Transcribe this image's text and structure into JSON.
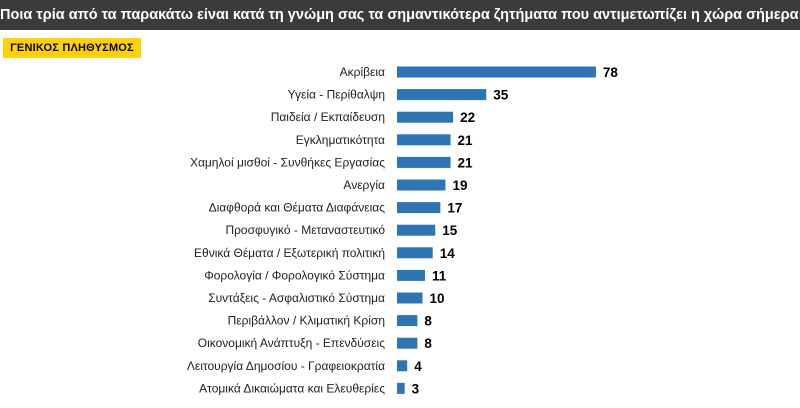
{
  "header": {
    "title": "Ποια τρία από τα παρακάτω είναι κατά τη γνώμη σας τα σημαντικότερα ζητήματα που αντιμετωπίζει η χώρα σήμερα;"
  },
  "badge": {
    "label": "ΓΕΝΙΚΟΣ ΠΛΗΘΥΣΜΟΣ"
  },
  "colors": {
    "bar": "#2e75b6",
    "header_bg": "#3b3b3b",
    "badge_bg": "#ffd200"
  },
  "chart_data": {
    "type": "bar",
    "orientation": "horizontal",
    "title": "Ποια τρία από τα παρακάτω είναι κατά τη γνώμη σας τα σημαντικότερα ζητήματα που αντιμετωπίζει η χώρα σήμερα;",
    "categories": [
      "Ακρίβεια",
      "Υγεία - Περίθαλψη",
      "Παιδεία / Εκπαίδευση",
      "Εγκληματικότητα",
      "Χαμηλοί μισθοί - Συνθήκες Εργασίας",
      "Ανεργία",
      "Διαφθορά και Θέματα Διαφάνειας",
      "Προσφυγικό - Μεταναστευτικό",
      "Εθνικά Θέματα / Εξωτερική πολιτική",
      "Φορολογία / Φορολογικό Σύστημα",
      "Συντάξεις - Ασφαλιστικό Σύστημα",
      "Περιβάλλον / Κλιματική Κρίση",
      "Οικονομική Ανάπτυξη - Επενδύσεις",
      "Λειτουργία Δημοσίου - Γραφειοκρατία",
      "Ατομικά Δικαιώματα και Ελευθερίες"
    ],
    "values": [
      78,
      35,
      22,
      21,
      21,
      19,
      17,
      15,
      14,
      11,
      10,
      8,
      8,
      4,
      3
    ],
    "data_labels": true,
    "grid": false,
    "xlim": [
      0,
      100
    ]
  }
}
